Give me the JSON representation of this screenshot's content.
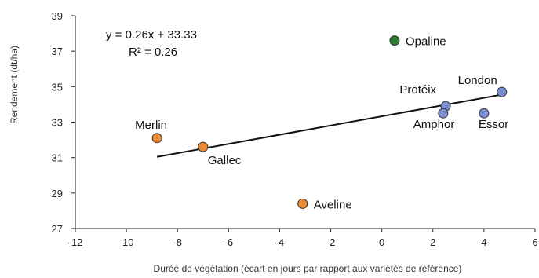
{
  "chart_data": {
    "type": "scatter",
    "xlabel": "Durée de végétation (écart en jours par rapport aux variétés de référence)",
    "ylabel": "Rendement (dt/ha)",
    "xlim": [
      -12,
      6
    ],
    "ylim": [
      27,
      39
    ],
    "x_ticks": [
      "-12",
      "-10",
      "-8",
      "-6",
      "-4",
      "-2",
      "0",
      "2",
      "4",
      "6"
    ],
    "y_ticks": [
      "27",
      "29",
      "31",
      "33",
      "35",
      "37",
      "39"
    ],
    "grid": false,
    "points": [
      {
        "label": "Opaline",
        "x": 0.5,
        "y": 37.6,
        "color": "#2e7d32"
      },
      {
        "label": "London",
        "x": 4.7,
        "y": 34.7,
        "color": "#7b8fd4"
      },
      {
        "label": "Protéix",
        "x": 2.5,
        "y": 33.9,
        "color": "#7b8fd4"
      },
      {
        "label": "Amphor",
        "x": 2.4,
        "y": 33.5,
        "color": "#7b8fd4"
      },
      {
        "label": "Essor",
        "x": 4.0,
        "y": 33.5,
        "color": "#7b8fd4"
      },
      {
        "label": "Merlin",
        "x": -8.8,
        "y": 32.1,
        "color": "#ee8a33"
      },
      {
        "label": "Gallec",
        "x": -7.0,
        "y": 31.6,
        "color": "#ee8a33"
      },
      {
        "label": "Aveline",
        "x": -3.1,
        "y": 28.4,
        "color": "#ee8a33"
      }
    ],
    "trendline": {
      "slope": 0.26,
      "intercept": 33.33,
      "x_range": [
        -8.8,
        4.7
      ]
    },
    "annotations": {
      "equation": "y = 0.26x + 33.33",
      "r_squared": "R² = 0.26"
    }
  }
}
